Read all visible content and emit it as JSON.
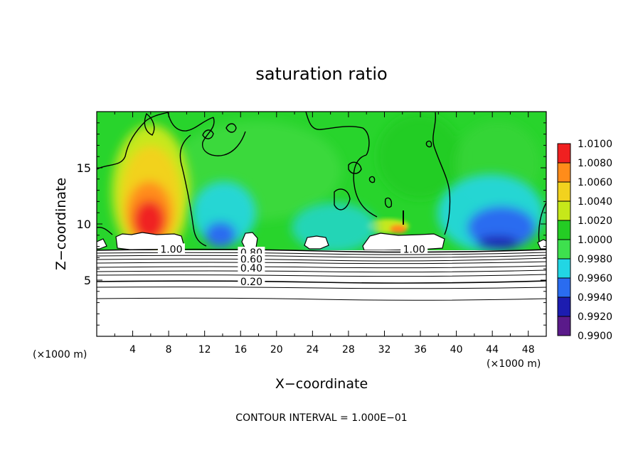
{
  "chart_data": {
    "type": "heatmap",
    "title": "saturation ratio",
    "xlabel": "X−coordinate",
    "ylabel": "Z−coordinate",
    "x_unit_left": "(×1000 m)",
    "x_unit_right": "(×1000 m)",
    "footnote": "CONTOUR INTERVAL = 1.000E−01",
    "xlim": [
      0,
      50
    ],
    "ylim": [
      0,
      20
    ],
    "xticks": [
      4,
      8,
      12,
      16,
      20,
      24,
      28,
      32,
      36,
      40,
      44,
      48
    ],
    "yticks": [
      5,
      10,
      15
    ],
    "contour_labels": [
      {
        "text": "1.00",
        "x": 8.3,
        "z": 7.7
      },
      {
        "text": "0.80",
        "x": 17.2,
        "z": 7.4
      },
      {
        "text": "0.60",
        "x": 17.2,
        "z": 6.8
      },
      {
        "text": "0.40",
        "x": 17.2,
        "z": 6.0
      },
      {
        "text": "0.20",
        "x": 17.2,
        "z": 4.8
      },
      {
        "text": "1.00",
        "x": 35.3,
        "z": 7.7
      }
    ],
    "colorbar": {
      "levels": [
        "0.9900",
        "0.9920",
        "0.9940",
        "0.9960",
        "0.9980",
        "1.0000",
        "1.0020",
        "1.0040",
        "1.0060",
        "1.0080",
        "1.0100"
      ],
      "colors": [
        "#5a1a8a",
        "#1c1cb0",
        "#2a6cf0",
        "#22d6e4",
        "#3ee04e",
        "#24cc24",
        "#c6e81a",
        "#f2d21e",
        "#ff8c1a",
        "#f02020",
        "#f49a9a"
      ]
    }
  }
}
